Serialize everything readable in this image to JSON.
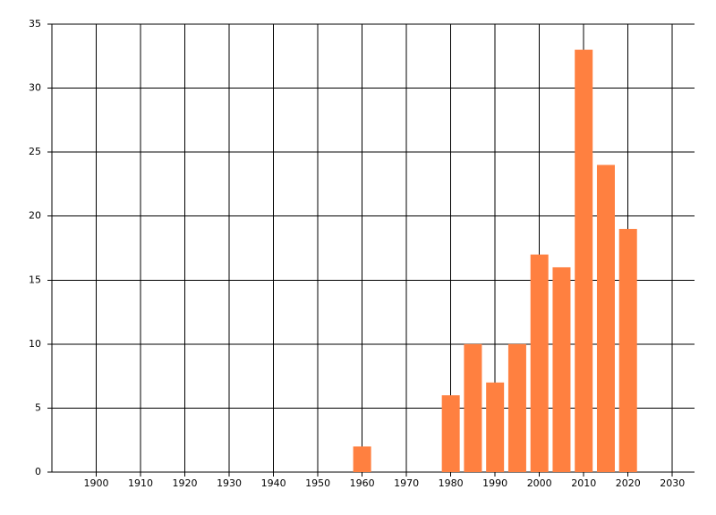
{
  "chart_data": {
    "type": "bar",
    "x": [
      1960,
      1980,
      1985,
      1990,
      1995,
      2000,
      2005,
      2010,
      2015,
      2020
    ],
    "values": [
      2,
      6,
      10,
      7,
      10,
      17,
      16,
      33,
      24,
      19
    ],
    "color": "#ff8040",
    "xlim": [
      1890,
      2035
    ],
    "xticks": [
      1900,
      1910,
      1920,
      1930,
      1940,
      1950,
      1960,
      1970,
      1980,
      1990,
      2000,
      2010,
      2020,
      2030
    ],
    "ylim": [
      0,
      35
    ],
    "yticks": [
      0,
      5,
      10,
      15,
      20,
      25,
      30,
      35
    ],
    "grid": true
  }
}
